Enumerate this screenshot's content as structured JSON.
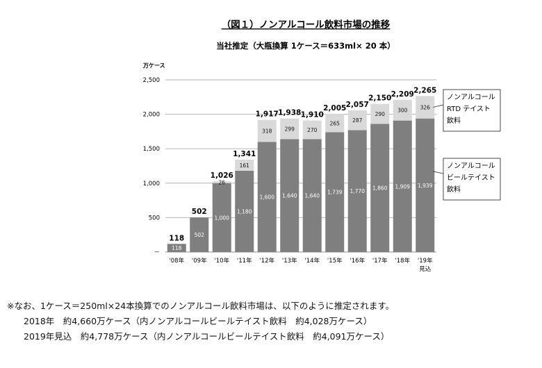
{
  "chart_data": {
    "type": "bar",
    "stacked": true,
    "title": "（図１）ノンアルコール飲料市場の推移",
    "subtitle": "当社推定（大瓶換算 1ケース＝633ml× 20 本）",
    "ylabel": "万ケース",
    "xlabel": "",
    "ylim": [
      0,
      2500
    ],
    "yticks": [
      "2,500",
      "2,000",
      "1,500",
      "1,000",
      "500",
      "－"
    ],
    "ytick_values": [
      2500,
      2000,
      1500,
      1000,
      500,
      0
    ],
    "grid": true,
    "categories": [
      "'08年",
      "'09年",
      "'10年",
      "'11年",
      "'12年",
      "'13年",
      "'14年",
      "'15年",
      "'16年",
      "'17年",
      "'18年",
      "'19年"
    ],
    "categories_line2": [
      "",
      "",
      "",
      "",
      "",
      "",
      "",
      "",
      "",
      "",
      "",
      "見込"
    ],
    "series": [
      {
        "name": "ノンアルコールビールテイスト飲料",
        "values": [
          118,
          502,
          1000,
          1180,
          1600,
          1640,
          1640,
          1739,
          1770,
          1860,
          1909,
          1939
        ],
        "labels": [
          "118",
          "502",
          "1,000",
          "1,180",
          "1,600",
          "1,640",
          "1,640",
          "1,739",
          "1,770",
          "1,860",
          "1,909",
          "1,939"
        ],
        "color": "#7f7f7f"
      },
      {
        "name": "ノンアルコールRTDテイスト飲料",
        "values": [
          0,
          0,
          26,
          161,
          318,
          299,
          270,
          265,
          287,
          290,
          300,
          326
        ],
        "labels": [
          "",
          "",
          "26",
          "161",
          "318",
          "299",
          "270",
          "265",
          "287",
          "290",
          "300",
          "326"
        ],
        "color": "#d9d9d9"
      }
    ],
    "totals": [
      "118",
      "502",
      "1,026",
      "1,341",
      "1,917",
      "1,938",
      "1,910",
      "2,005",
      "2,057",
      "2,150",
      "2,209",
      "2,265"
    ],
    "legend": [
      {
        "lines": [
          "ノンアルコール",
          "RTD テイスト",
          "飲料"
        ]
      },
      {
        "lines": [
          "ノンアルコール",
          "ビールテイスト",
          "飲料"
        ]
      }
    ],
    "legend_position": "right"
  },
  "notes": {
    "line1": "※なお、1ケース＝250ml×24本換算でのノンアルコール飲料市場は、以下のように推定されます。",
    "line2": "2018年　約4,660万ケース（内ノンアルコールビールテイスト飲料　約4,028万ケース）",
    "line3": "2019年見込　約4,778万ケース（内ノンアルコールビールテイスト飲料　約4,091万ケース）"
  }
}
